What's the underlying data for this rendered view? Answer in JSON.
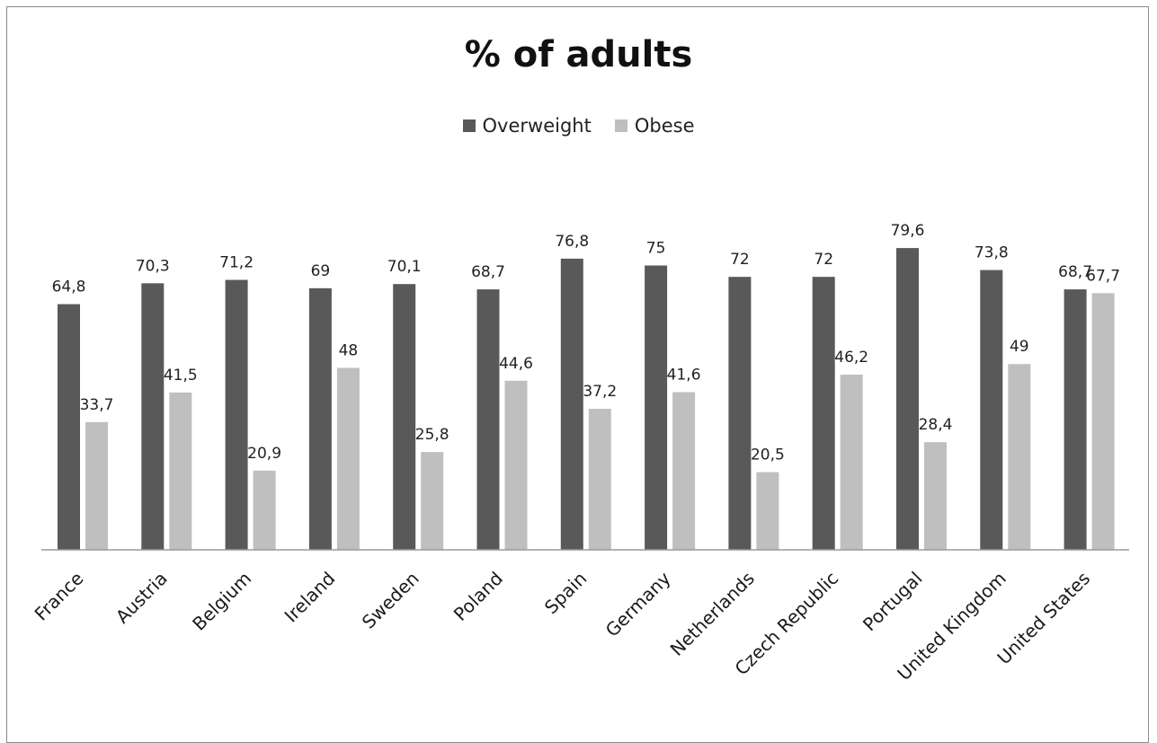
{
  "chart_data": {
    "type": "bar",
    "title": "% of adults",
    "categories": [
      "France",
      "Austria",
      "Belgium",
      "Ireland",
      "Sweden",
      "Poland",
      "Spain",
      "Germany",
      "Netherlands",
      "Czech Republic",
      "Portugal",
      "United Kingdom",
      "United States"
    ],
    "series": [
      {
        "name": "Overweight",
        "color": "#595959",
        "values": [
          64.8,
          70.3,
          71.2,
          69,
          70.1,
          68.7,
          76.8,
          75,
          72,
          72,
          79.6,
          73.8,
          68.7
        ],
        "labels": [
          "64,8",
          "70,3",
          "71,2",
          "69",
          "70,1",
          "68,7",
          "76,8",
          "75",
          "72",
          "72",
          "79,6",
          "73,8",
          "68,7"
        ]
      },
      {
        "name": "Obese",
        "color": "#bfbfbf",
        "values": [
          33.7,
          41.5,
          20.9,
          48,
          25.8,
          44.6,
          37.2,
          41.6,
          20.5,
          46.2,
          28.4,
          49,
          67.7
        ],
        "labels": [
          "33,7",
          "41,5",
          "20,9",
          "48",
          "25,8",
          "44,6",
          "37,2",
          "41,6",
          "20,5",
          "46,2",
          "28,4",
          "49",
          "67,7"
        ]
      }
    ],
    "ylim": [
      0,
      85
    ],
    "grid": false,
    "legend_position": "top-center",
    "xlabel": "",
    "ylabel": ""
  }
}
